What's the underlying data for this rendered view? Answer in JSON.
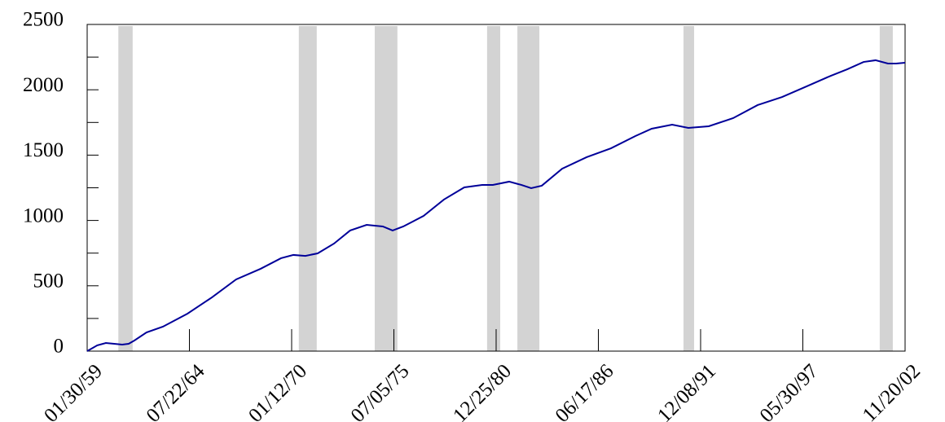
{
  "chart_data": {
    "type": "line",
    "x": [
      "01/30/59",
      "08/15/59",
      "01/30/60",
      "07/10/60",
      "12/15/60",
      "04/20/61",
      "08/10/61",
      "04/05/62",
      "02/20/63",
      "06/15/64",
      "10/05/65",
      "01/22/67",
      "05/15/68",
      "06/18/69",
      "02/15/70",
      "10/08/70",
      "06/05/71",
      "04/20/72",
      "03/01/73",
      "01/18/74",
      "12/01/74",
      "06/10/75",
      "01/05/76",
      "02/05/77",
      "03/10/78",
      "04/12/79",
      "03/28/80",
      "10/22/80",
      "09/06/81",
      "05/01/82",
      "11/10/82",
      "06/06/83",
      "07/08/84",
      "10/30/85",
      "02/18/87",
      "06/10/88",
      "04/25/89",
      "05/30/90",
      "04/12/91",
      "05/15/92",
      "09/05/93",
      "12/28/94",
      "04/20/96",
      "08/10/97",
      "11/28/98",
      "10/15/99",
      "08/30/00",
      "04/22/01",
      "12/20/01",
      "05/28/02",
      "11/20/02"
    ],
    "series": [
      {
        "color": "#000099",
        "values": [
          0,
          44,
          62,
          56,
          50,
          56,
          81,
          143,
          187,
          287,
          411,
          549,
          630,
          711,
          736,
          729,
          748,
          823,
          923,
          966,
          954,
          923,
          954,
          1035,
          1160,
          1253,
          1272,
          1272,
          1297,
          1272,
          1247,
          1266,
          1396,
          1484,
          1552,
          1646,
          1702,
          1733,
          1708,
          1721,
          1783,
          1883,
          1945,
          2026,
          2107,
          2157,
          2213,
          2226,
          2201,
          2201,
          2207
        ]
      }
    ],
    "shaded_ranges": [
      {
        "start": "10/01/60",
        "end": "07/08/61"
      },
      {
        "start": "06/01/70",
        "end": "05/18/71"
      },
      {
        "start": "06/25/74",
        "end": "09/12/75"
      },
      {
        "start": "07/01/80",
        "end": "03/15/81"
      },
      {
        "start": "02/14/82",
        "end": "04/20/83"
      },
      {
        "start": "01/08/91",
        "end": "08/03/91"
      },
      {
        "start": "07/12/01",
        "end": "03/25/02"
      }
    ],
    "shade_color": "#d3d3d3",
    "xlim": [
      "01/30/59",
      "11/20/02"
    ],
    "xticks": [
      "01/30/59",
      "07/22/64",
      "01/12/70",
      "07/05/75",
      "12/25/80",
      "06/17/86",
      "12/08/91",
      "05/30/97",
      "11/20/02"
    ],
    "ylim": [
      0,
      2500
    ],
    "yticks": [
      0,
      500,
      1000,
      1500,
      2000,
      2500
    ],
    "y_minor_ticks": [
      250,
      750,
      1250,
      1750,
      2250
    ]
  }
}
